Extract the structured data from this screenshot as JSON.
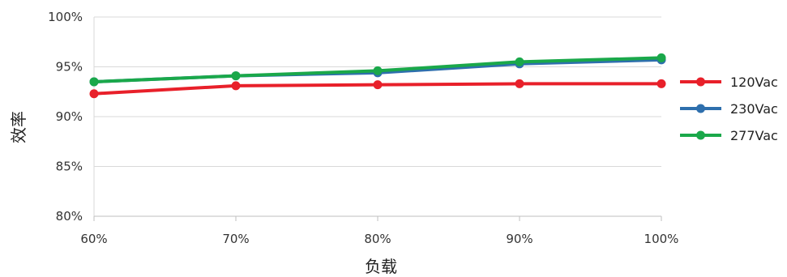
{
  "chart_data": {
    "type": "line",
    "title": "",
    "xlabel": "负载",
    "ylabel": "效率",
    "categories": [
      "60%",
      "70%",
      "80%",
      "90%",
      "100%"
    ],
    "x": [
      60,
      70,
      80,
      90,
      100
    ],
    "yticks": [
      "80%",
      "85%",
      "90%",
      "95%",
      "100%"
    ],
    "ylim": [
      80,
      100
    ],
    "grid": "horizontal",
    "legend_position": "right",
    "series": [
      {
        "name": "120Vac",
        "color": "#e8202a",
        "values": [
          92.3,
          93.1,
          93.2,
          93.3,
          93.3
        ]
      },
      {
        "name": "230Vac",
        "color": "#2e6fad",
        "values": [
          93.5,
          94.1,
          94.4,
          95.3,
          95.7
        ]
      },
      {
        "name": "277Vac",
        "color": "#1aa84a",
        "values": [
          93.5,
          94.1,
          94.6,
          95.5,
          95.9
        ]
      }
    ]
  }
}
